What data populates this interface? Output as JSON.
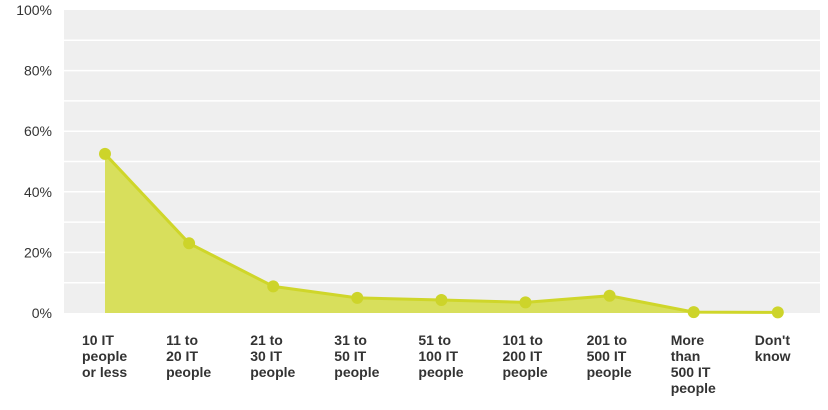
{
  "chart_data": {
    "type": "area",
    "categories": [
      [
        "10 IT",
        "people",
        "or less"
      ],
      [
        "11 to",
        "20 IT",
        "people"
      ],
      [
        "21 to",
        "30 IT",
        "people"
      ],
      [
        "31 to",
        "50 IT",
        "people"
      ],
      [
        "51 to",
        "100 IT",
        "people"
      ],
      [
        "101 to",
        "200 IT",
        "people"
      ],
      [
        "201 to",
        "500 IT",
        "people"
      ],
      [
        "More",
        "than",
        "500 IT",
        "people"
      ],
      [
        "Don't",
        "know"
      ]
    ],
    "series": [
      {
        "values": [
          52.5,
          23,
          8.8,
          5,
          4.3,
          3.5,
          5.7,
          0.3,
          0.2
        ]
      }
    ],
    "yticks": [
      "0%",
      "20%",
      "40%",
      "60%",
      "80%",
      "100%"
    ],
    "ylim": [
      0,
      100
    ],
    "title": "",
    "xlabel": "",
    "ylabel": "",
    "grid": true,
    "colors": {
      "plot_background": "#efefef",
      "gridline": "#ffffff",
      "area_fill": "#d8df5c",
      "line": "#cfd62a",
      "marker": "#cdd42a"
    }
  }
}
